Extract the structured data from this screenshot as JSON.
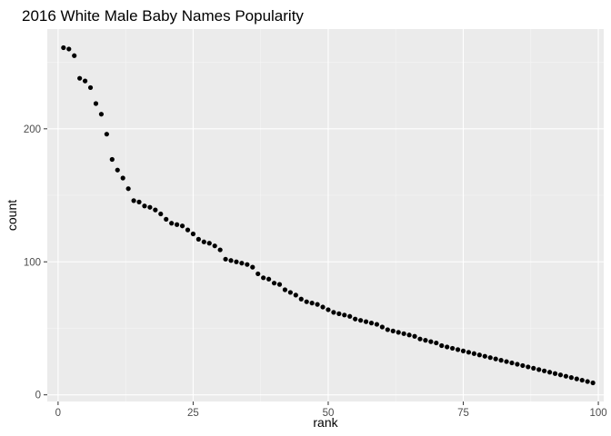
{
  "chart_data": {
    "type": "scatter",
    "title": "2016 White Male Baby Names Popularity",
    "xlabel": "rank",
    "ylabel": "count",
    "xlim": [
      -2,
      101
    ],
    "ylim": [
      -5,
      275
    ],
    "x_ticks": [
      {
        "value": 0,
        "label": "0"
      },
      {
        "value": 25,
        "label": "25"
      },
      {
        "value": 50,
        "label": "50"
      },
      {
        "value": 75,
        "label": "75"
      },
      {
        "value": 100,
        "label": "100"
      }
    ],
    "y_ticks": [
      {
        "value": 0,
        "label": "0"
      },
      {
        "value": 100,
        "label": "100"
      },
      {
        "value": 200,
        "label": "200"
      }
    ],
    "grid": true,
    "theme": {
      "panel_bg": "#EBEBEB",
      "grid_major": "#FFFFFF",
      "grid_minor": "#F5F5F5",
      "point_color": "#000000"
    },
    "x": [
      1,
      2,
      3,
      4,
      5,
      6,
      7,
      8,
      9,
      10,
      11,
      12,
      13,
      14,
      15,
      16,
      17,
      18,
      19,
      20,
      21,
      22,
      23,
      24,
      25,
      26,
      27,
      28,
      29,
      30,
      31,
      32,
      33,
      34,
      35,
      36,
      37,
      38,
      39,
      40,
      41,
      42,
      43,
      44,
      45,
      46,
      47,
      48,
      49,
      50,
      51,
      52,
      53,
      54,
      55,
      56,
      57,
      58,
      59,
      60,
      61,
      62,
      63,
      64,
      65,
      66,
      67,
      68,
      69,
      70,
      71,
      72,
      73,
      74,
      75,
      76,
      77,
      78,
      79,
      80,
      81,
      82,
      83,
      84,
      85,
      86,
      87,
      88,
      89,
      90,
      91,
      92,
      93,
      94,
      95,
      96,
      97,
      98,
      99
    ],
    "y": [
      261,
      260,
      255,
      238,
      236,
      231,
      219,
      211,
      196,
      177,
      169,
      163,
      155,
      146,
      145,
      142,
      141,
      139,
      136,
      132,
      129,
      128,
      127,
      124,
      121,
      117,
      115,
      114,
      112,
      109,
      102,
      101,
      100,
      99,
      98,
      96,
      91,
      88,
      87,
      84,
      83,
      79,
      77,
      75,
      72,
      70,
      69,
      68,
      66,
      64,
      62,
      61,
      60,
      59,
      57,
      56,
      55,
      54,
      53,
      51,
      49,
      48,
      47,
      46,
      45,
      44,
      42,
      41,
      40,
      39,
      37,
      36,
      35,
      34,
      33,
      32,
      31,
      30,
      29,
      28,
      27,
      26,
      25,
      24,
      23,
      22,
      21,
      20,
      19,
      18,
      17,
      16,
      15,
      14,
      13,
      12,
      11,
      10,
      9
    ]
  }
}
